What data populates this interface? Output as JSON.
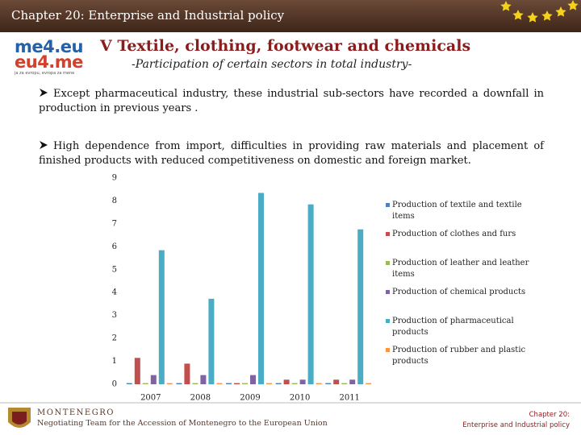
{
  "header": {
    "title": "Chapter 20: Enterprise and Industrial policy"
  },
  "logo": {
    "line1": "me4.eu",
    "line2": "eu4.me",
    "tagline": "ja za evropu, evropa za mene"
  },
  "heading": "V   Textile, clothing, footwear and chemicals",
  "subheading": "-Participation of certain sectors in total industry-",
  "bullets": [
    "Except pharmaceutical industry, these industrial sub-sectors have recorded a downfall in production in previous years .",
    "High dependence from import, difficulties in providing raw materials and placement of finished products with reduced competitiveness on domestic and foreign market."
  ],
  "footer": {
    "country": "MONTENEGRO",
    "team": "Negotiating Team for the Accession of Montenegro to the European Union",
    "chapter": "Chapter 20:",
    "chapter_title": "Enterprise and Industrial policy"
  },
  "chart_data": {
    "type": "bar",
    "categories": [
      "2007",
      "2008",
      "2009",
      "2010",
      "2011"
    ],
    "series": [
      {
        "name": "Production of textile and textile items",
        "color": "#4f81bd",
        "values": [
          0.05,
          0.05,
          0.05,
          0.05,
          0.05
        ]
      },
      {
        "name": "Production of clothes and furs",
        "color": "#c0504d",
        "values": [
          1.15,
          0.9,
          0.05,
          0.2,
          0.2
        ]
      },
      {
        "name": "Production of leather and leather items",
        "color": "#9bbb59",
        "values": [
          0.05,
          0.05,
          0.05,
          0.05,
          0.05
        ]
      },
      {
        "name": "Production of chemical products",
        "color": "#8064a2",
        "values": [
          0.4,
          0.4,
          0.4,
          0.2,
          0.2
        ]
      },
      {
        "name": "Production of pharmaceutical products",
        "color": "#4bacc6",
        "values": [
          5.85,
          3.73,
          8.35,
          7.85,
          6.76
        ]
      },
      {
        "name": "Production of rubber and plastic products",
        "color": "#f79646",
        "values": [
          0.05,
          0.05,
          0.05,
          0.05,
          0.05
        ]
      }
    ],
    "ylim": [
      0,
      9
    ],
    "yticks": [
      0,
      1,
      2,
      3,
      4,
      5,
      6,
      7,
      8,
      9
    ],
    "grid": false,
    "legend": "right"
  }
}
